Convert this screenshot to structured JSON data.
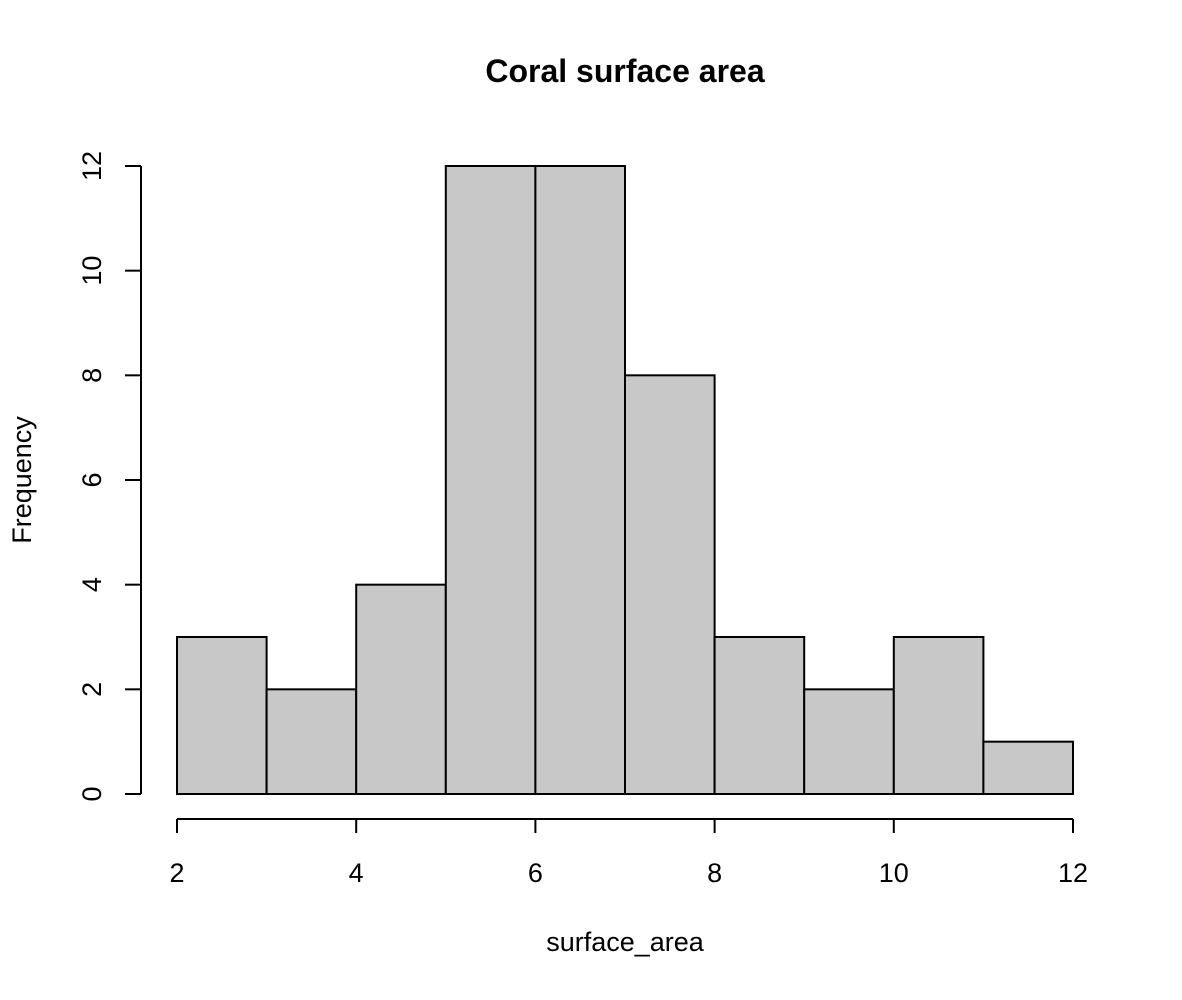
{
  "chart_data": {
    "type": "bar",
    "subtype": "histogram",
    "title": "Coral surface area",
    "xlabel": "surface_area",
    "ylabel": "Frequency",
    "bins": [
      {
        "start": 2,
        "end": 3,
        "count": 3
      },
      {
        "start": 3,
        "end": 4,
        "count": 2
      },
      {
        "start": 4,
        "end": 5,
        "count": 4
      },
      {
        "start": 5,
        "end": 6,
        "count": 12
      },
      {
        "start": 6,
        "end": 7,
        "count": 12
      },
      {
        "start": 7,
        "end": 8,
        "count": 8
      },
      {
        "start": 8,
        "end": 9,
        "count": 3
      },
      {
        "start": 9,
        "end": 10,
        "count": 2
      },
      {
        "start": 10,
        "end": 11,
        "count": 3
      },
      {
        "start": 11,
        "end": 12,
        "count": 1
      }
    ],
    "xlim": [
      2,
      12
    ],
    "ylim": [
      0,
      12
    ],
    "x_ticks": [
      2,
      4,
      6,
      8,
      10,
      12
    ],
    "y_ticks": [
      0,
      2,
      4,
      6,
      8,
      10,
      12
    ],
    "bar_color": "#c8c8c8",
    "edge_color": "#000000",
    "grid": false,
    "legend": "none"
  }
}
